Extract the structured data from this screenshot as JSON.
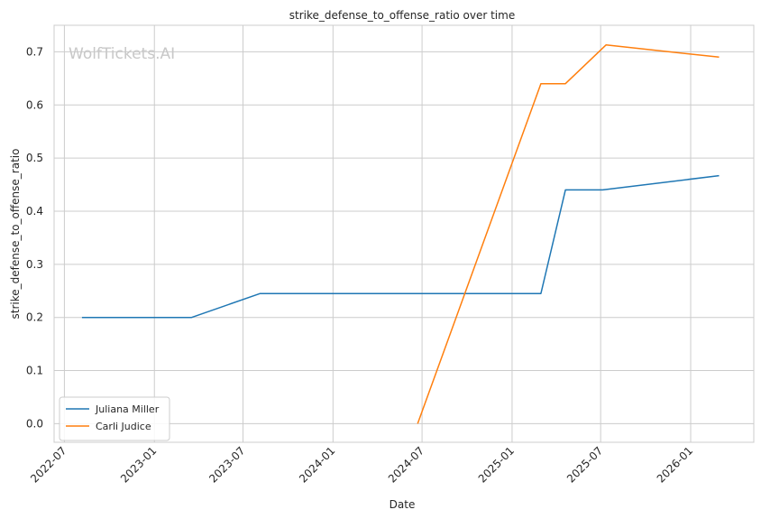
{
  "chart_data": {
    "type": "line",
    "title": "strike_defense_to_offense_ratio over time",
    "xlabel": "Date",
    "ylabel": "strike_defense_to_offense_ratio",
    "watermark": "WolfTickets.AI",
    "x_ticks": [
      "2022-07",
      "2023-01",
      "2023-07",
      "2024-01",
      "2024-07",
      "2025-01",
      "2025-07",
      "2026-01"
    ],
    "y_ticks": [
      "0.0",
      "0.1",
      "0.2",
      "0.3",
      "0.4",
      "0.5",
      "0.6",
      "0.7"
    ],
    "xlim": [
      "2022-06-10",
      "2026-05-10"
    ],
    "ylim": [
      -0.035,
      0.75
    ],
    "grid": true,
    "legend_position": "lower-left",
    "series": [
      {
        "name": "Juliana Miller",
        "color": "#1f77b4",
        "points": [
          {
            "x": "2022-08-06",
            "y": 0.2
          },
          {
            "x": "2023-03-18",
            "y": 0.2
          },
          {
            "x": "2023-08-05",
            "y": 0.245
          },
          {
            "x": "2025-03-01",
            "y": 0.245
          },
          {
            "x": "2025-04-20",
            "y": 0.44
          },
          {
            "x": "2025-07-05",
            "y": 0.44
          },
          {
            "x": "2026-02-28",
            "y": 0.467
          }
        ]
      },
      {
        "name": "Carli Judice",
        "color": "#ff7f0e",
        "points": [
          {
            "x": "2024-06-22",
            "y": 0.0
          },
          {
            "x": "2025-03-01",
            "y": 0.64
          },
          {
            "x": "2025-04-20",
            "y": 0.64
          },
          {
            "x": "2025-07-12",
            "y": 0.713
          },
          {
            "x": "2026-02-28",
            "y": 0.69
          }
        ]
      }
    ]
  }
}
